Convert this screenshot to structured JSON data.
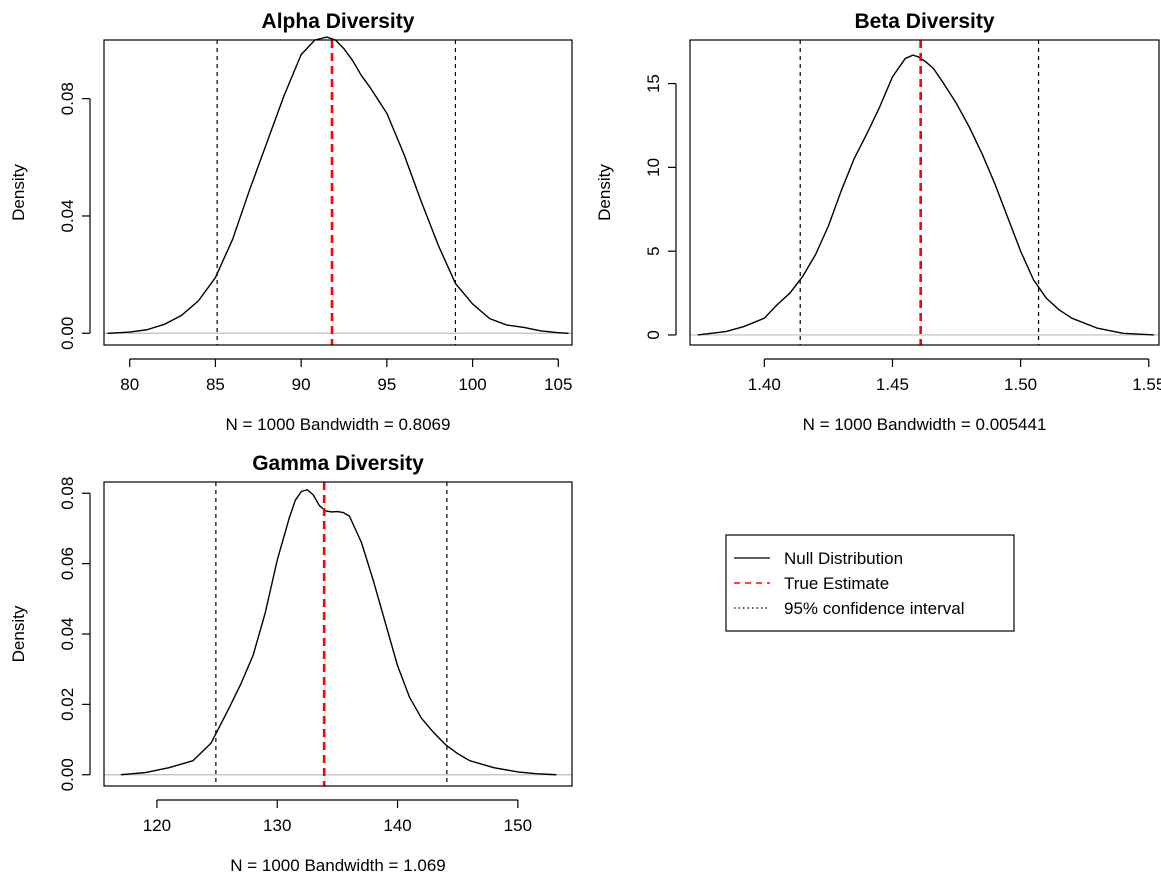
{
  "chart_data": [
    {
      "type": "line",
      "title": "Alpha Diversity",
      "xlabel": "N = 1000   Bandwidth = 0.8069",
      "ylabel": "Density",
      "xlim": [
        78.5,
        105.8
      ],
      "ylim": [
        -0.004,
        0.1
      ],
      "x_ticks": [
        80,
        85,
        90,
        95,
        100,
        105
      ],
      "x_tick_labels": [
        "80",
        "85",
        "90",
        "95",
        "100",
        "105"
      ],
      "y_ticks": [
        0,
        0.04,
        0.08
      ],
      "y_tick_labels": [
        "0.00",
        "0.04",
        "0.08"
      ],
      "true_estimate": 91.8,
      "ci": [
        85.1,
        99.0
      ],
      "series": [
        {
          "name": "Null Distribution",
          "x": [
            78.7,
            80,
            81,
            82,
            83,
            84,
            85,
            86,
            87,
            88,
            89,
            90,
            90.8,
            91.5,
            92,
            92.5,
            93,
            93.5,
            94,
            95,
            96,
            97,
            98,
            99,
            100,
            101,
            102,
            103,
            104,
            105,
            105.6
          ],
          "y": [
            0.0,
            0.0004,
            0.0012,
            0.003,
            0.006,
            0.011,
            0.019,
            0.032,
            0.049,
            0.065,
            0.081,
            0.095,
            0.1,
            0.101,
            0.1,
            0.097,
            0.093,
            0.088,
            0.084,
            0.075,
            0.061,
            0.045,
            0.03,
            0.017,
            0.01,
            0.005,
            0.0028,
            0.002,
            0.0008,
            0.0002,
            0.0
          ]
        }
      ]
    },
    {
      "type": "line",
      "title": "Beta Diversity",
      "xlabel": "N = 1000   Bandwidth = 0.005441",
      "ylabel": "Density",
      "xlim": [
        1.371,
        1.554
      ],
      "ylim": [
        -0.6,
        17.6
      ],
      "x_ticks": [
        1.4,
        1.45,
        1.5,
        1.55
      ],
      "x_tick_labels": [
        "1.40",
        "1.45",
        "1.50",
        "1.55"
      ],
      "y_ticks": [
        0,
        5,
        10,
        15
      ],
      "y_tick_labels": [
        "0",
        "5",
        "10",
        "15"
      ],
      "true_estimate": 1.461,
      "ci": [
        1.414,
        1.507
      ],
      "series": [
        {
          "name": "Null Distribution",
          "x": [
            1.374,
            1.385,
            1.392,
            1.4,
            1.405,
            1.41,
            1.415,
            1.42,
            1.425,
            1.43,
            1.435,
            1.44,
            1.445,
            1.45,
            1.455,
            1.458,
            1.46,
            1.463,
            1.466,
            1.47,
            1.475,
            1.48,
            1.485,
            1.49,
            1.495,
            1.5,
            1.505,
            1.51,
            1.515,
            1.52,
            1.53,
            1.54,
            1.552
          ],
          "y": [
            0.0,
            0.2,
            0.5,
            1.0,
            1.8,
            2.5,
            3.5,
            4.8,
            6.5,
            8.6,
            10.5,
            12.0,
            13.6,
            15.4,
            16.5,
            16.7,
            16.6,
            16.3,
            15.9,
            15.0,
            13.8,
            12.4,
            10.8,
            9.0,
            7.0,
            5.0,
            3.3,
            2.2,
            1.5,
            1.0,
            0.4,
            0.1,
            0.0
          ]
        }
      ]
    },
    {
      "type": "line",
      "title": "Gamma Diversity",
      "xlabel": "N = 1000   Bandwidth = 1.069",
      "ylabel": "Density",
      "xlim": [
        115.6,
        154.5
      ],
      "ylim": [
        -0.0032,
        0.0832
      ],
      "x_ticks": [
        120,
        130,
        140,
        150
      ],
      "x_tick_labels": [
        "120",
        "130",
        "140",
        "150"
      ],
      "y_ticks": [
        0,
        0.02,
        0.04,
        0.06,
        0.08
      ],
      "y_tick_labels": [
        "0.00",
        "0.02",
        "0.04",
        "0.06",
        "0.08"
      ],
      "true_estimate": 133.9,
      "ci": [
        124.9,
        144.1
      ],
      "series": [
        {
          "name": "Null Distribution",
          "x": [
            117.0,
            119,
            121,
            123,
            124.5,
            126,
            127,
            128,
            129,
            130,
            131,
            131.5,
            132,
            132.5,
            133,
            133.5,
            134,
            134.5,
            135,
            135.5,
            136,
            137,
            138,
            139,
            140,
            141,
            142,
            143,
            144,
            145,
            146,
            148,
            150,
            151.5,
            153.2
          ],
          "y": [
            0.0,
            0.0006,
            0.002,
            0.004,
            0.009,
            0.019,
            0.026,
            0.034,
            0.046,
            0.061,
            0.073,
            0.078,
            0.0805,
            0.081,
            0.0795,
            0.0765,
            0.075,
            0.0747,
            0.0748,
            0.0745,
            0.0735,
            0.066,
            0.055,
            0.043,
            0.031,
            0.022,
            0.016,
            0.012,
            0.0085,
            0.006,
            0.004,
            0.002,
            0.0008,
            0.0003,
            0.0
          ]
        }
      ]
    }
  ],
  "legend": {
    "items": [
      {
        "label": "Null Distribution",
        "style": "solid",
        "color": "#000000"
      },
      {
        "label": "True Estimate",
        "style": "dashed",
        "color": "#ff0000"
      },
      {
        "label": "95% confidence interval",
        "style": "dotted",
        "color": "#000000"
      }
    ]
  },
  "colors": {
    "density": "#000000",
    "true_estimate": "#ff0000",
    "ci": "#000000",
    "zero_line": "#bebebe"
  }
}
